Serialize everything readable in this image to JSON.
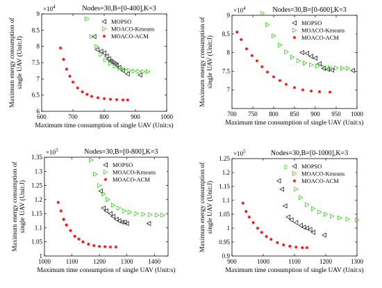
{
  "chart_data": [
    {
      "type": "scatter",
      "title": "Nodes=30,B=[0-400],K=3",
      "xlabel": "Maximum time consumption of single UAV (Unit:s)",
      "ylabel": "Maximum energy consumption of single UAV (Unit:J)",
      "xlim": [
        600,
        1000
      ],
      "ylim": [
        6,
        9
      ],
      "y_multiplier": "×10^4",
      "xticks": [
        600,
        700,
        800,
        900,
        1000
      ],
      "yticks": [
        6,
        6.5,
        7,
        7.5,
        8,
        8.5,
        9
      ],
      "legend": "top-right",
      "grid": false,
      "series": [
        {
          "name": "MOPSO",
          "marker": "triangle-left",
          "color": "#000000",
          "points": [
            [
              768,
              8.3
            ],
            [
              778,
              7.9
            ],
            [
              790,
              7.85
            ],
            [
              800,
              7.8
            ],
            [
              808,
              7.7
            ],
            [
              815,
              7.62
            ],
            [
              820,
              7.55
            ],
            [
              825,
              7.52
            ],
            [
              830,
              7.48
            ],
            [
              835,
              7.45
            ],
            [
              840,
              7.42
            ],
            [
              848,
              7.35
            ],
            [
              860,
              7.25
            ],
            [
              875,
              7.15
            ],
            [
              915,
              7.12
            ]
          ]
        },
        {
          "name": "MOACO-Kmeans",
          "marker": "triangle-right",
          "color": "#22cc00",
          "points": [
            [
              745,
              8.85
            ],
            [
              760,
              8.3
            ],
            [
              775,
              8.0
            ],
            [
              790,
              7.75
            ],
            [
              805,
              7.58
            ],
            [
              820,
              7.47
            ],
            [
              835,
              7.39
            ],
            [
              850,
              7.33
            ],
            [
              865,
              7.29
            ],
            [
              880,
              7.26
            ],
            [
              895,
              7.24
            ],
            [
              910,
              7.23
            ],
            [
              925,
              7.22
            ],
            [
              940,
              7.22
            ]
          ]
        },
        {
          "name": "MOACO-ACM",
          "marker": "star",
          "color": "#ff0000",
          "points": [
            [
              660,
              7.95
            ],
            [
              670,
              7.6
            ],
            [
              680,
              7.3
            ],
            [
              690,
              7.08
            ],
            [
              700,
              6.9
            ],
            [
              715,
              6.72
            ],
            [
              730,
              6.6
            ],
            [
              745,
              6.52
            ],
            [
              760,
              6.46
            ],
            [
              780,
              6.42
            ],
            [
              800,
              6.39
            ],
            [
              820,
              6.37
            ],
            [
              840,
              6.36
            ],
            [
              860,
              6.35
            ],
            [
              875,
              6.35
            ]
          ]
        }
      ]
    },
    {
      "type": "scatter",
      "title": "Nodes=30,B=[0-600],K=3",
      "xlabel": "Maximum time consumption of single UAV (Unit:s)",
      "ylabel": "Maximum energy consumption of single UAV (Unit:J)",
      "xlim": [
        700,
        1000
      ],
      "ylim": [
        6.5,
        9
      ],
      "y_multiplier": "×10^4",
      "xticks": [
        700,
        750,
        800,
        850,
        900,
        950,
        1000
      ],
      "yticks": [
        7,
        7.5,
        8,
        8.5,
        9
      ],
      "legend": "top-right",
      "grid": false,
      "series": [
        {
          "name": "MOPSO",
          "marker": "triangle-left",
          "color": "#000000",
          "points": [
            [
              858,
              8.35
            ],
            [
              868,
              8.0
            ],
            [
              880,
              7.98
            ],
            [
              890,
              7.9
            ],
            [
              900,
              7.85
            ],
            [
              910,
              7.7
            ],
            [
              920,
              7.58
            ],
            [
              930,
              7.55
            ],
            [
              940,
              7.53
            ],
            [
              990,
              7.52
            ]
          ]
        },
        {
          "name": "MOACO-Kmeans",
          "marker": "triangle-right",
          "color": "#22cc00",
          "points": [
            [
              773,
              9.05
            ],
            [
              785,
              8.75
            ],
            [
              800,
              8.45
            ],
            [
              815,
              8.2
            ],
            [
              830,
              8.02
            ],
            [
              845,
              7.88
            ],
            [
              860,
              7.78
            ],
            [
              875,
              7.72
            ],
            [
              890,
              7.67
            ],
            [
              905,
              7.64
            ],
            [
              920,
              7.61
            ],
            [
              935,
              7.6
            ],
            [
              950,
              7.59
            ],
            [
              965,
              7.58
            ],
            [
              978,
              7.58
            ]
          ]
        },
        {
          "name": "MOACO-ACM",
          "marker": "star",
          "color": "#ff0000",
          "points": [
            [
              712,
              8.55
            ],
            [
              722,
              8.35
            ],
            [
              735,
              8.1
            ],
            [
              748,
              7.92
            ],
            [
              760,
              7.78
            ],
            [
              772,
              7.62
            ],
            [
              785,
              7.48
            ],
            [
              800,
              7.35
            ],
            [
              815,
              7.25
            ],
            [
              830,
              7.15
            ],
            [
              850,
              7.06
            ],
            [
              870,
              7.0
            ],
            [
              890,
              6.97
            ],
            [
              910,
              6.95
            ],
            [
              935,
              6.94
            ]
          ]
        }
      ]
    },
    {
      "type": "scatter",
      "title": "Nodes=30,B=[0-800],K=3",
      "xlabel": "Maximum time consumption of single UAV (Unit:s)",
      "ylabel": "Maximum energy consumption of single UAV (Unit:J)",
      "xlim": [
        1000,
        1450
      ],
      "ylim": [
        1.0,
        1.35
      ],
      "y_multiplier": "×10^5",
      "xticks": [
        1000,
        1100,
        1200,
        1300,
        1400
      ],
      "yticks": [
        1.0,
        1.05,
        1.1,
        1.15,
        1.2,
        1.25,
        1.3,
        1.35
      ],
      "legend": "top-right",
      "grid": false,
      "series": [
        {
          "name": "MOPSO",
          "marker": "triangle-left",
          "color": "#000000",
          "points": [
            [
              1205,
              1.23
            ],
            [
              1215,
              1.17
            ],
            [
              1225,
              1.16
            ],
            [
              1240,
              1.15
            ],
            [
              1250,
              1.14
            ],
            [
              1262,
              1.13
            ],
            [
              1272,
              1.125
            ],
            [
              1282,
              1.12
            ],
            [
              1292,
              1.12
            ],
            [
              1300,
              1.115
            ],
            [
              1380,
              1.115
            ]
          ]
        },
        {
          "name": "MOACO-Kmeans",
          "marker": "triangle-right",
          "color": "#22cc00",
          "points": [
            [
              1170,
              1.34
            ],
            [
              1185,
              1.29
            ],
            [
              1200,
              1.25
            ],
            [
              1215,
              1.22
            ],
            [
              1230,
              1.2
            ],
            [
              1250,
              1.18
            ],
            [
              1270,
              1.17
            ],
            [
              1290,
              1.16
            ],
            [
              1310,
              1.155
            ],
            [
              1335,
              1.15
            ],
            [
              1360,
              1.148
            ],
            [
              1385,
              1.146
            ],
            [
              1410,
              1.145
            ],
            [
              1430,
              1.145
            ]
          ]
        },
        {
          "name": "MOACO-ACM",
          "marker": "star",
          "color": "#ff0000",
          "points": [
            [
              1050,
              1.19
            ],
            [
              1060,
              1.16
            ],
            [
              1070,
              1.13
            ],
            [
              1080,
              1.11
            ],
            [
              1095,
              1.09
            ],
            [
              1110,
              1.07
            ],
            [
              1125,
              1.06
            ],
            [
              1140,
              1.05
            ],
            [
              1160,
              1.042
            ],
            [
              1180,
              1.037
            ],
            [
              1200,
              1.034
            ],
            [
              1220,
              1.033
            ],
            [
              1240,
              1.032
            ],
            [
              1260,
              1.032
            ]
          ]
        }
      ]
    },
    {
      "type": "scatter",
      "title": "Nodes=30,B=[0-1000],K=3",
      "xlabel": "Maximum time consumption of single UAV (Unit:s)",
      "ylabel": "Maximum energy consumption of single UAV (Unit:J)",
      "xlim": [
        900,
        1300
      ],
      "ylim": [
        0.9,
        1.25
      ],
      "y_multiplier": "×10^5",
      "xticks": [
        900,
        1000,
        1100,
        1200,
        1300
      ],
      "yticks": [
        0.9,
        0.95,
        1.0,
        1.05,
        1.1,
        1.15,
        1.2,
        1.25
      ],
      "legend": "top-right",
      "grid": false,
      "series": [
        {
          "name": "MOPSO",
          "marker": "triangle-left",
          "color": "#000000",
          "points": [
            [
              1050,
              1.17
            ],
            [
              1060,
              1.14
            ],
            [
              1070,
              1.08
            ],
            [
              1080,
              1.04
            ],
            [
              1090,
              1.03
            ],
            [
              1105,
              1.02
            ],
            [
              1120,
              1.01
            ],
            [
              1130,
              1.003
            ],
            [
              1140,
              1.0
            ],
            [
              1150,
              0.995
            ],
            [
              1160,
              0.985
            ],
            [
              1195,
              0.975
            ]
          ]
        },
        {
          "name": "MOACO-Kmeans",
          "marker": "triangle-right",
          "color": "#22cc00",
          "points": [
            [
              1075,
              1.22
            ],
            [
              1090,
              1.17
            ],
            [
              1105,
              1.14
            ],
            [
              1120,
              1.11
            ],
            [
              1140,
              1.085
            ],
            [
              1160,
              1.07
            ],
            [
              1180,
              1.058
            ],
            [
              1200,
              1.05
            ],
            [
              1220,
              1.043
            ],
            [
              1245,
              1.037
            ],
            [
              1270,
              1.033
            ],
            [
              1300,
              1.03
            ]
          ]
        },
        {
          "name": "MOACO-ACM",
          "marker": "star",
          "color": "#ff0000",
          "points": [
            [
              935,
              1.09
            ],
            [
              945,
              1.06
            ],
            [
              955,
              1.04
            ],
            [
              968,
              1.02
            ],
            [
              982,
              1.0
            ],
            [
              995,
              0.985
            ],
            [
              1010,
              0.97
            ],
            [
              1025,
              0.96
            ],
            [
              1045,
              0.948
            ],
            [
              1065,
              0.94
            ],
            [
              1085,
              0.935
            ],
            [
              1105,
              0.932
            ],
            [
              1125,
              0.93
            ],
            [
              1140,
              0.93
            ]
          ]
        }
      ]
    }
  ]
}
